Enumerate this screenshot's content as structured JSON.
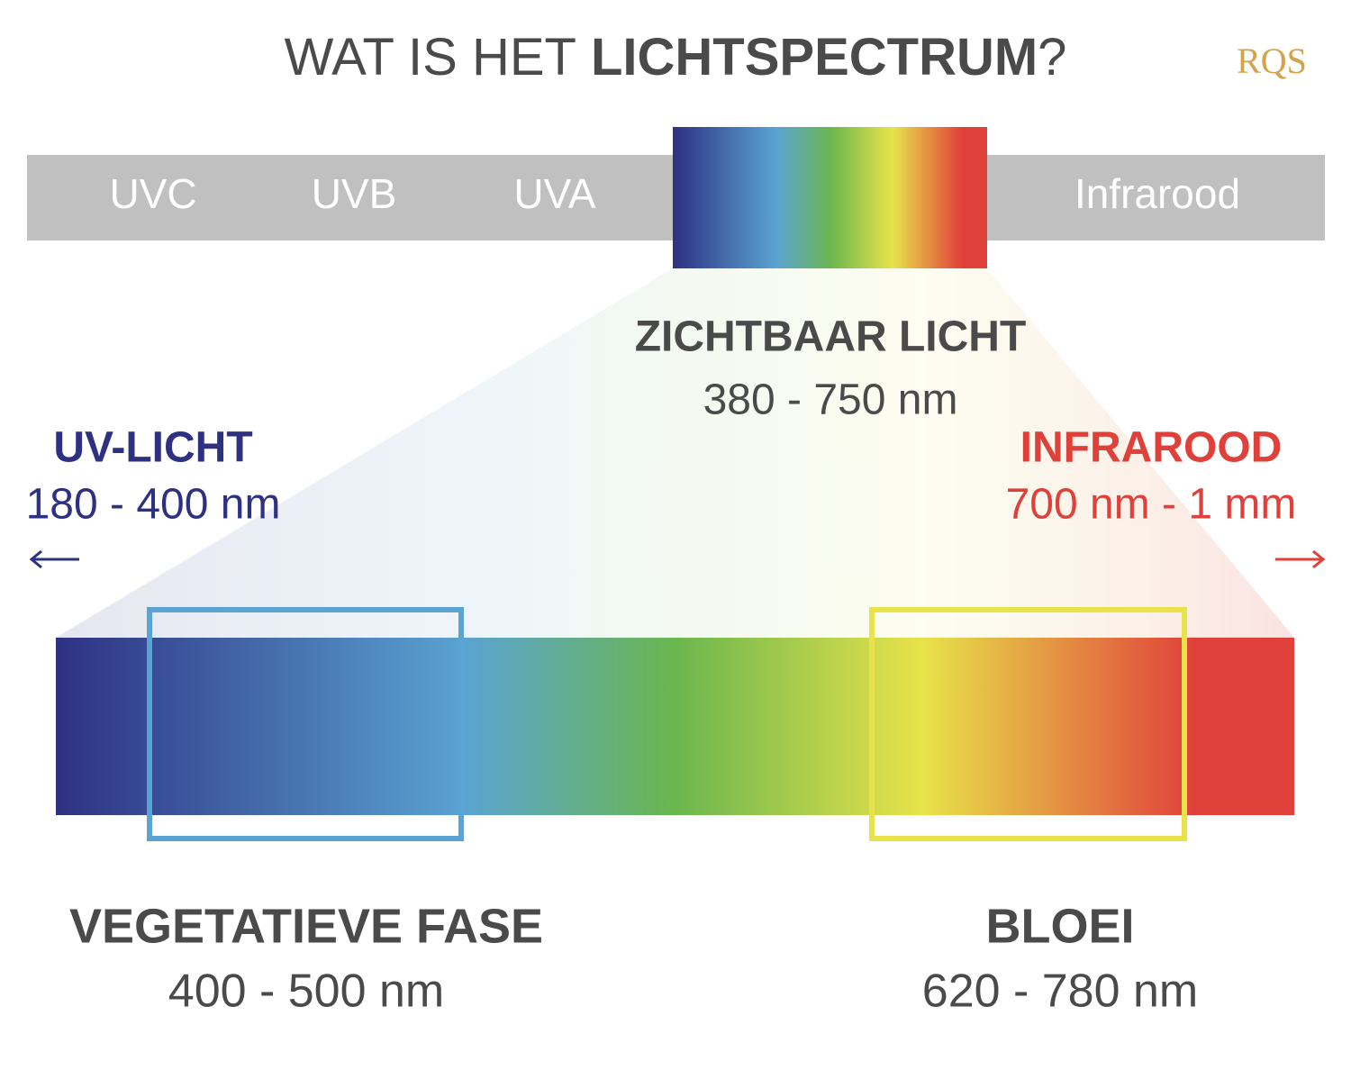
{
  "header": {
    "title_start": "WAT IS HET",
    "title_bold": "LICHTSPECTRUM",
    "title_end": "?",
    "logo": "RQS"
  },
  "bands": [
    "UVC",
    "UVB",
    "UVA",
    "Infrarood"
  ],
  "visible": {
    "label": "ZICHTBAAR LICHT",
    "range": "380 - 750 nm"
  },
  "uv": {
    "label": "UV-LICHT",
    "range": "180 - 400 nm"
  },
  "infrared": {
    "label": "INFRAROOD",
    "range": "700 nm - 1 mm"
  },
  "phases": [
    {
      "label": "VEGETATIEVE FASE",
      "range": "400 - 500 nm"
    },
    {
      "label": "BLOEI",
      "range": "620 - 780 nm"
    }
  ]
}
